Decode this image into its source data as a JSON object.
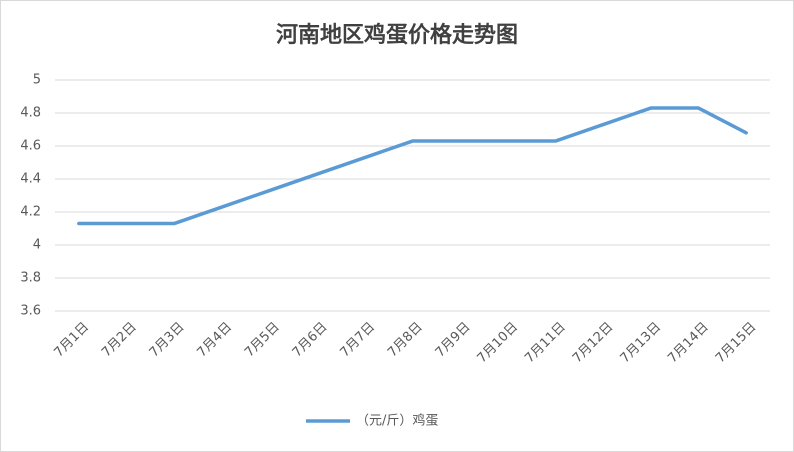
{
  "chart_data": {
    "type": "line",
    "title": "河南地区鸡蛋价格走势图",
    "categories": [
      "7月1日",
      "7月2日",
      "7月3日",
      "7月4日",
      "7月5日",
      "7月6日",
      "7月7日",
      "7月8日",
      "7月9日",
      "7月10日",
      "7月11日",
      "7月12日",
      "7月13日",
      "7月14日",
      "7月15日"
    ],
    "series": [
      {
        "name": "（元/斤）鸡蛋",
        "color": "#5b9bd5",
        "values": [
          4.13,
          4.13,
          4.13,
          4.23,
          4.33,
          4.43,
          4.53,
          4.63,
          4.63,
          4.63,
          4.63,
          4.73,
          4.83,
          4.83,
          4.68
        ]
      }
    ],
    "ylim": [
      3.6,
      5
    ],
    "yticks": [
      3.6,
      3.8,
      4,
      4.2,
      4.4,
      4.6,
      4.8,
      5
    ],
    "grid": true,
    "legend": "bottom"
  }
}
